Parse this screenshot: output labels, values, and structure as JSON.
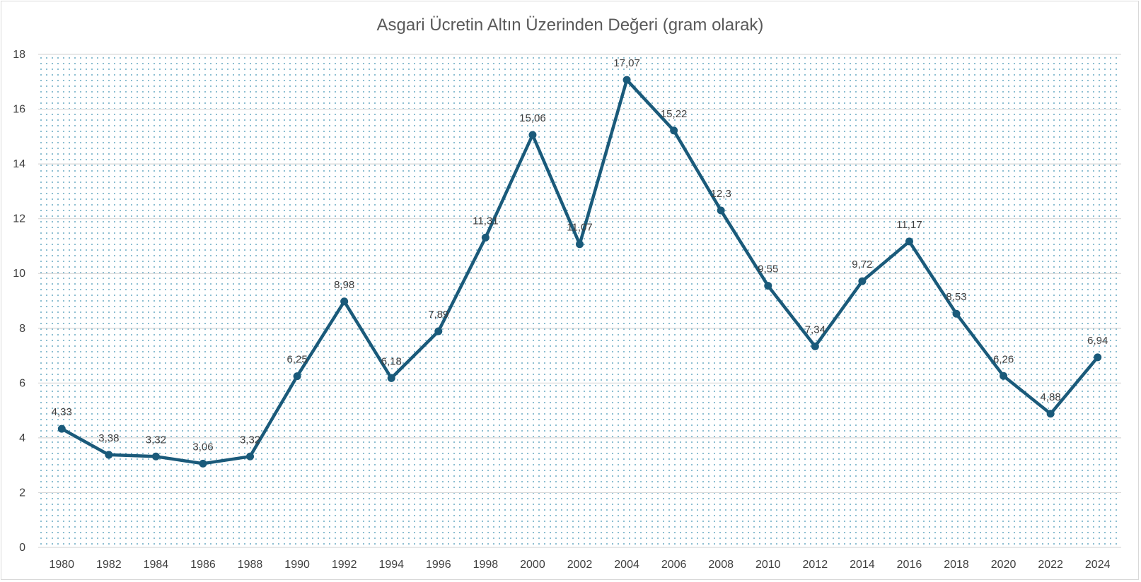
{
  "chart_data": {
    "type": "line",
    "title": "Asgari Ücretin Altın Üzerinden Değeri (gram olarak)",
    "xlabel": "",
    "ylabel": "",
    "ylim": [
      0,
      18
    ],
    "y_ticks": [
      "0",
      "2",
      "4",
      "6",
      "8",
      "10",
      "12",
      "14",
      "16",
      "18"
    ],
    "grid": true,
    "legend": "none",
    "categories": [
      "1980",
      "1982",
      "1984",
      "1986",
      "1988",
      "1990",
      "1992",
      "1994",
      "1996",
      "1998",
      "2000",
      "2002",
      "2004",
      "2006",
      "2008",
      "2010",
      "2012",
      "2014",
      "2016",
      "2018",
      "2020",
      "2022",
      "2024"
    ],
    "series": [
      {
        "values": [
          4.33,
          3.38,
          3.32,
          3.06,
          3.32,
          6.25,
          8.98,
          6.18,
          7.89,
          11.31,
          15.06,
          11.07,
          17.07,
          15.22,
          12.3,
          9.55,
          7.34,
          9.72,
          11.17,
          8.53,
          6.26,
          4.88,
          6.94
        ],
        "data_labels": [
          "4,33",
          "3,38",
          "3,32",
          "3,06",
          "3,32",
          "6,25",
          "8,98",
          "6,18",
          "7,89",
          "11,31",
          "15,06",
          "11,07",
          "17,07",
          "15,22",
          "12,3",
          "9,55",
          "7,34",
          "9,72",
          "11,17",
          "8,53",
          "6,26",
          "4,88",
          "6,94"
        ],
        "color": "#1a5a7a"
      }
    ],
    "colors": {
      "line": "#1a5a7a",
      "plot_dots": "#3a8fb0",
      "gridline": "#d9d9d9",
      "text": "#404040",
      "title": "#595959"
    }
  }
}
